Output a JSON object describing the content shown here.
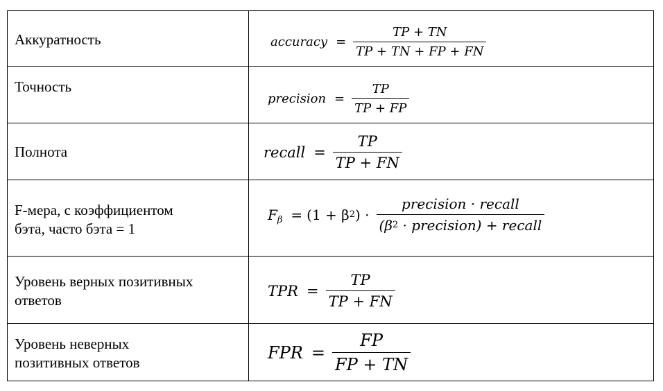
{
  "rows": [
    {
      "label_lines": [
        "Аккуратность"
      ],
      "lhs": "accuracy",
      "num": "TP + TN",
      "den": "TP + TN + FP + FN"
    },
    {
      "label_lines": [
        "Точность"
      ],
      "lhs": "precision",
      "num": "TP",
      "den": "TP + FP"
    },
    {
      "label_lines": [
        "Полнота"
      ],
      "lhs": "recall",
      "num": "TP",
      "den": "TP + FN"
    },
    {
      "label_lines": [
        "F-мера, с коэффициентом",
        "бэта, часто бэта = 1"
      ],
      "lhs_base": "F",
      "lhs_sub": "β",
      "prefix": "(1 + β",
      "prefix_sup": "2",
      "prefix_end": ") ·",
      "num": "precision · recall",
      "den_a": "(β",
      "den_sup": "2",
      "den_b": " · precision) + recall"
    },
    {
      "label_lines": [
        "Уровень верных позитивных",
        "ответов"
      ],
      "lhs": "TPR",
      "num": "TP",
      "den": "TP + FN"
    },
    {
      "label_lines": [
        "Уровень неверных",
        "позитивных ответов"
      ],
      "lhs": "FPR",
      "num": "FP",
      "den": "FP + TN"
    }
  ]
}
